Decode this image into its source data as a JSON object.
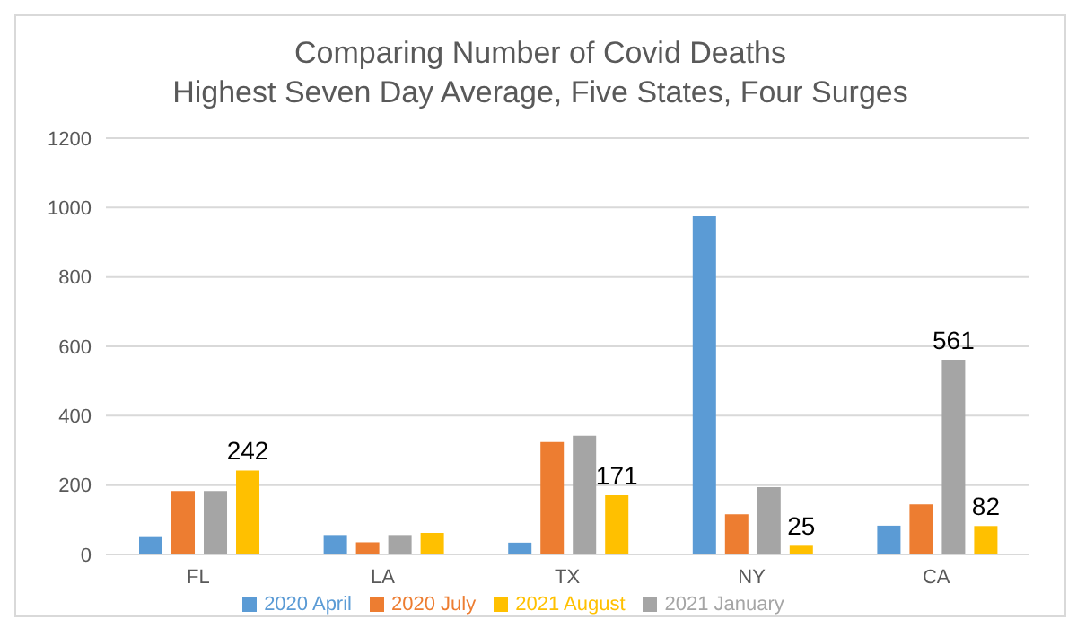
{
  "chart_data": {
    "type": "bar",
    "title": "Comparing Number of Covid Deaths\nHighest Seven Day Average, Five States, Four Surges",
    "categories": [
      "FL",
      "LA",
      "TX",
      "NY",
      "CA"
    ],
    "series": [
      {
        "name": "2020 April",
        "color": "#5b9bd5",
        "values": [
          50,
          56,
          34,
          975,
          83
        ]
      },
      {
        "name": "2020 July",
        "color": "#ed7d31",
        "values": [
          183,
          35,
          324,
          116,
          144
        ]
      },
      {
        "name": "2021 January",
        "color": "#a5a5a5",
        "values": [
          183,
          56,
          342,
          194,
          561
        ],
        "value_labels": [
          null,
          null,
          null,
          null,
          "561"
        ]
      },
      {
        "name": "2021 August",
        "color": "#ffc000",
        "values": [
          242,
          62,
          171,
          25,
          82
        ],
        "value_labels": [
          "242",
          null,
          "171",
          "25",
          "82"
        ]
      }
    ],
    "ylim": [
      0,
      1200
    ],
    "yticks": [
      0,
      200,
      400,
      600,
      800,
      1000,
      1200
    ],
    "grid": "y",
    "legend": "bottom"
  }
}
